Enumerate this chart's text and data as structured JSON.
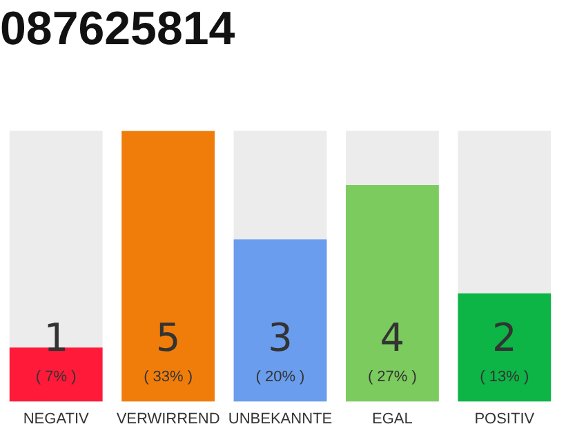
{
  "chart_data": {
    "type": "bar",
    "title": "087625814",
    "categories": [
      "NEGATIV",
      "VERWIRREND",
      "UNBEKANNTE",
      "EGAL",
      "POSITIV"
    ],
    "values": [
      1,
      5,
      3,
      4,
      2
    ],
    "colors": [
      "#ff1a3a",
      "#f07d0a",
      "#6a9ded",
      "#7ccb5e",
      "#0db446"
    ],
    "ylim": [
      0,
      5
    ],
    "data_labels": true,
    "grid": false,
    "legend": false,
    "tick_labels": "x",
    "annotations": [
      "( 7% )",
      "( 33% )",
      "( 20% )",
      "( 27% )",
      "( 13% )"
    ]
  }
}
